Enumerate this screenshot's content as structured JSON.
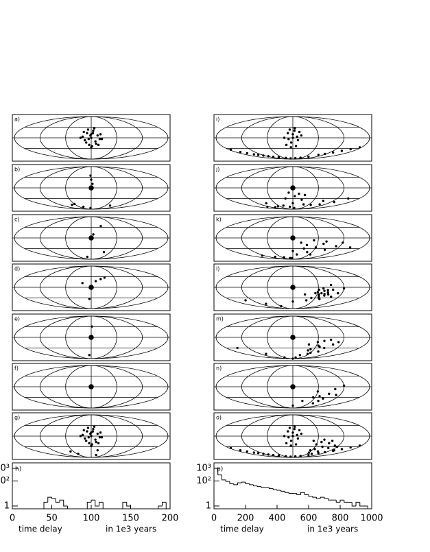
{
  "chart_data": [
    {
      "type": "skymap",
      "label": "a)",
      "xlim": [
        -180,
        180
      ],
      "ylim": [
        -90,
        90
      ],
      "x": [
        -20,
        -15,
        -10,
        -5,
        0,
        5,
        10,
        15,
        20,
        -18,
        -8,
        2,
        12,
        22,
        -12,
        -2,
        8,
        18,
        -6,
        4,
        0,
        -25,
        25,
        0
      ],
      "y": [
        5,
        -10,
        20,
        -30,
        0,
        30,
        -15,
        10,
        -5,
        25,
        35,
        -35,
        -25,
        15,
        -20,
        10,
        40,
        -30,
        -5,
        20,
        -40,
        0,
        -5,
        15
      ]
    },
    {
      "type": "skymap",
      "label": "b)",
      "xlim": [
        -180,
        180
      ],
      "ylim": [
        -90,
        90
      ],
      "source": {
        "x": 0,
        "y": 0
      },
      "x": [
        -2,
        0,
        3,
        -75,
        -60,
        -40,
        80,
        -5
      ],
      "y": [
        52,
        35,
        17,
        -72,
        -68,
        -80,
        -75,
        -85
      ]
    },
    {
      "type": "skymap",
      "label": "c)",
      "xlim": [
        -180,
        180
      ],
      "ylim": [
        -90,
        90
      ],
      "source": {
        "x": 0,
        "y": 0
      },
      "x": [
        27,
        5,
        -20,
        40
      ],
      "y": [
        50,
        15,
        -80,
        -60
      ]
    },
    {
      "type": "skymap",
      "label": "d)",
      "xlim": [
        -180,
        180
      ],
      "ylim": [
        -90,
        90
      ],
      "source": {
        "x": 0,
        "y": 0
      },
      "x": [
        -21,
        11,
        24,
        35,
        -5
      ],
      "y": [
        18,
        26,
        35,
        41,
        -49
      ]
    },
    {
      "type": "skymap",
      "label": "e)",
      "xlim": [
        -180,
        180
      ],
      "ylim": [
        -90,
        90
      ],
      "source": {
        "x": 0,
        "y": 0
      },
      "x": [
        2,
        -8
      ],
      "y": [
        46,
        -75
      ]
    },
    {
      "type": "skymap",
      "label": "f)",
      "xlim": [
        -180,
        180
      ],
      "ylim": [
        -90,
        90
      ],
      "source": {
        "x": 0,
        "y": 0
      },
      "x": [],
      "y": []
    },
    {
      "type": "skymap",
      "label": "g)",
      "xlim": [
        -180,
        180
      ],
      "ylim": [
        -90,
        90
      ],
      "x": [
        -20,
        -15,
        -10,
        -5,
        0,
        5,
        10,
        15,
        20,
        -18,
        -8,
        2,
        12,
        22,
        -12,
        -2,
        8,
        18,
        -6,
        4,
        0,
        -25,
        25,
        0,
        -70,
        -55,
        20,
        25
      ],
      "y": [
        5,
        -10,
        20,
        -30,
        0,
        30,
        -15,
        10,
        -5,
        25,
        35,
        -35,
        -25,
        15,
        -20,
        10,
        40,
        -30,
        -5,
        20,
        -40,
        0,
        -5,
        15,
        -65,
        -75,
        -60,
        -80
      ]
    },
    {
      "type": "histogram",
      "label": "h)",
      "xlim": [
        0,
        200
      ],
      "ylim": [
        0.6,
        2750
      ],
      "log_y": true,
      "bins": [
        0,
        5,
        10,
        15,
        20,
        25,
        30,
        35,
        40,
        45,
        50,
        55,
        60,
        65,
        70,
        75,
        80,
        85,
        90,
        95,
        100,
        105,
        110,
        115,
        120,
        125,
        130,
        135,
        140,
        145,
        150,
        155,
        160,
        165,
        170,
        175,
        180,
        185,
        190,
        195,
        200
      ],
      "counts": [
        0,
        0,
        0,
        0,
        0,
        0,
        0,
        0,
        2,
        5,
        4,
        2,
        3,
        1,
        0,
        0,
        0,
        0,
        0,
        2,
        3,
        1,
        2,
        0,
        0,
        0,
        0,
        0,
        2,
        1,
        0,
        0,
        0,
        0,
        0,
        0,
        0,
        1,
        2,
        0
      ],
      "xticks": [
        0,
        50,
        100,
        150,
        200
      ],
      "yticks": [
        1,
        {
          "value": 100,
          "label": "10²"
        },
        {
          "value": 1000,
          "label": "10³"
        }
      ],
      "xlabel": "time delay",
      "xunit": "in 1e3 years"
    },
    {
      "type": "skymap",
      "label": "i)",
      "xlim": [
        -180,
        180
      ],
      "ylim": [
        -90,
        90
      ],
      "x": [
        -20,
        -12,
        -4,
        4,
        12,
        20,
        -16,
        -8,
        0,
        8,
        16,
        -10,
        0,
        10,
        -5,
        5,
        -175,
        -165,
        -155,
        -145,
        -135,
        -125,
        -115,
        -100,
        -80,
        -50,
        -20,
        20,
        50,
        80,
        100,
        115,
        130,
        145,
        160,
        175
      ],
      "y": [
        0,
        20,
        -20,
        30,
        -10,
        10,
        -30,
        35,
        0,
        -35,
        25,
        -5,
        15,
        5,
        -40,
        40,
        -50,
        -60,
        -65,
        -70,
        -72,
        -75,
        -78,
        -80,
        -82,
        -85,
        -87,
        -86,
        -84,
        -80,
        -72,
        -68,
        -62,
        -55,
        -48,
        -40
      ]
    },
    {
      "type": "skymap",
      "label": "j)",
      "xlim": [
        -180,
        180
      ],
      "ylim": [
        -90,
        90
      ],
      "source": {
        "x": 0,
        "y": 0
      },
      "x": [
        -10,
        5,
        15,
        -20,
        25,
        -40,
        40,
        -70,
        70,
        -100,
        100,
        -130,
        130,
        -90,
        90,
        0,
        10,
        -15,
        30,
        150
      ],
      "y": [
        -20,
        -35,
        -25,
        -45,
        -50,
        -75,
        -70,
        -78,
        -72,
        -82,
        -70,
        -80,
        -60,
        -65,
        -55,
        -65,
        -85,
        -80,
        -30,
        -45
      ]
    },
    {
      "type": "skymap",
      "label": "k)",
      "xlim": [
        -180,
        180
      ],
      "ylim": [
        -90,
        90
      ],
      "source": {
        "x": 0,
        "y": 0
      },
      "x": [
        20,
        35,
        50,
        60,
        75,
        90,
        110,
        45,
        65,
        -20,
        -50,
        -90,
        -130,
        0,
        15,
        30,
        80,
        120,
        150,
        -5
      ],
      "y": [
        -20,
        -30,
        -10,
        -40,
        -25,
        -50,
        -35,
        -60,
        -70,
        -85,
        -82,
        -80,
        -75,
        -55,
        -70,
        -45,
        -15,
        -20,
        -40,
        -85
      ]
    },
    {
      "type": "skymap",
      "label": "l)",
      "xlim": [
        -180,
        180
      ],
      "ylim": [
        -90,
        90
      ],
      "source": {
        "x": 0,
        "y": 0
      },
      "x": [
        60,
        65,
        70,
        75,
        80,
        85,
        62,
        68,
        72,
        78,
        83,
        70,
        75,
        66,
        88,
        55,
        50,
        95,
        100,
        40,
        110,
        30,
        -100,
        -140,
        -60,
        0,
        90,
        120
      ],
      "y": [
        -20,
        -30,
        -25,
        -15,
        -35,
        -22,
        -10,
        -40,
        -5,
        -28,
        -12,
        -45,
        -50,
        -35,
        -30,
        -25,
        -45,
        -10,
        -40,
        -55,
        -25,
        -30,
        -70,
        -55,
        -80,
        -60,
        10,
        -5
      ]
    },
    {
      "type": "skymap",
      "label": "m)",
      "xlim": [
        -180,
        180
      ],
      "ylim": [
        -90,
        90
      ],
      "source": {
        "x": 0,
        "y": 0
      },
      "x": [
        40,
        50,
        60,
        70,
        80,
        90,
        55,
        65,
        75,
        45,
        85,
        100,
        30,
        60,
        -100,
        -150,
        -60,
        0,
        110,
        20
      ],
      "y": [
        -30,
        -50,
        -20,
        -40,
        -60,
        -10,
        -70,
        -35,
        -15,
        -55,
        -45,
        -30,
        -75,
        -65,
        -70,
        -45,
        -85,
        -90,
        -20,
        -85
      ]
    },
    {
      "type": "skymap",
      "label": "n)",
      "xlim": [
        -180,
        180
      ],
      "ylim": [
        -90,
        90
      ],
      "source": {
        "x": 0,
        "y": 0
      },
      "x": [
        60,
        70,
        80,
        90,
        100,
        75,
        85,
        55,
        110,
        120,
        0,
        30
      ],
      "y": [
        -20,
        -40,
        -60,
        -30,
        -10,
        -70,
        -50,
        -45,
        -35,
        5,
        -80,
        -60
      ]
    },
    {
      "type": "skymap",
      "label": "o)",
      "xlim": [
        -180,
        180
      ],
      "ylim": [
        -90,
        90
      ],
      "x": [
        -20,
        -12,
        -4,
        4,
        12,
        20,
        -16,
        -8,
        0,
        8,
        16,
        -10,
        0,
        10,
        -5,
        5,
        50,
        60,
        70,
        80,
        90,
        100,
        110,
        55,
        65,
        75,
        85,
        95,
        120,
        130,
        60,
        80,
        -175,
        -165,
        -155,
        -145,
        -135,
        -125,
        -115,
        -100,
        -80,
        -50,
        -20,
        20,
        50,
        80,
        100,
        115,
        130,
        145,
        160,
        175
      ],
      "y": [
        0,
        20,
        -20,
        30,
        -10,
        10,
        -30,
        35,
        0,
        -35,
        25,
        -5,
        15,
        5,
        -40,
        40,
        -20,
        -35,
        -25,
        -45,
        -30,
        -50,
        -40,
        -60,
        -55,
        -15,
        -65,
        -20,
        -45,
        -60,
        -70,
        -75,
        -50,
        -60,
        -65,
        -70,
        -72,
        -75,
        -78,
        -80,
        -82,
        -85,
        -87,
        -86,
        -84,
        -80,
        -72,
        -68,
        -62,
        -55,
        -48,
        -40
      ]
    },
    {
      "type": "histogram",
      "label": "p)",
      "xlim": [
        0,
        1000
      ],
      "ylim": [
        0.6,
        2750
      ],
      "log_y": true,
      "bins": [
        0,
        25,
        50,
        75,
        100,
        125,
        150,
        175,
        200,
        225,
        250,
        275,
        300,
        325,
        350,
        375,
        400,
        425,
        450,
        475,
        500,
        525,
        550,
        575,
        600,
        625,
        650,
        675,
        700,
        725,
        750,
        775,
        800,
        825,
        850,
        875,
        900,
        925,
        950,
        975,
        1000
      ],
      "counts": [
        1000,
        300,
        120,
        90,
        60,
        50,
        70,
        80,
        60,
        50,
        40,
        35,
        30,
        30,
        25,
        20,
        18,
        15,
        12,
        10,
        10,
        8,
        12,
        8,
        6,
        5,
        4,
        5,
        4,
        3,
        3,
        2,
        3,
        2,
        2,
        1,
        2,
        1,
        1,
        0
      ],
      "xticks": [
        0,
        200,
        400,
        600,
        800,
        1000
      ],
      "yticks": [
        1,
        {
          "value": 100,
          "label": "10²"
        },
        {
          "value": 1000,
          "label": "10³"
        }
      ],
      "xlabel": "time delay",
      "xunit": "in 1e3 years"
    }
  ]
}
